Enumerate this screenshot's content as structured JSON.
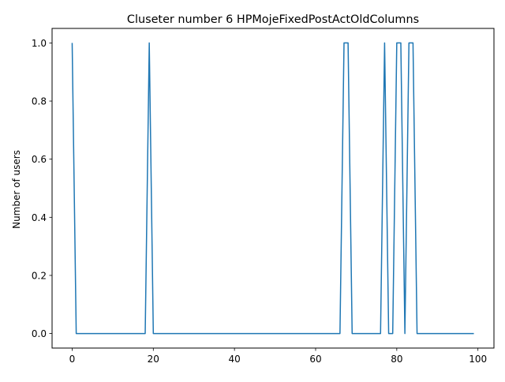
{
  "chart_data": {
    "type": "line",
    "title": "Cluseter number 6 HPMojeFixedPostActOldColumns",
    "xlabel": "",
    "ylabel": "Number of users",
    "xlim": [
      -4.95,
      103.95
    ],
    "ylim": [
      -0.05,
      1.05
    ],
    "xticks": [
      0,
      20,
      40,
      60,
      80,
      100
    ],
    "yticks": [
      0.0,
      0.2,
      0.4,
      0.6,
      0.8,
      1.0
    ],
    "xtick_labels": [
      "0",
      "20",
      "40",
      "60",
      "80",
      "100"
    ],
    "ytick_labels": [
      "0.0",
      "0.2",
      "0.4",
      "0.6",
      "0.8",
      "1.0"
    ],
    "grid": false,
    "line_color": "#1f77b4",
    "series": [
      {
        "x": [
          0,
          1,
          2,
          3,
          4,
          5,
          6,
          7,
          8,
          9,
          10,
          11,
          12,
          13,
          14,
          15,
          16,
          17,
          18,
          19,
          20,
          21,
          22,
          23,
          24,
          25,
          26,
          27,
          28,
          29,
          30,
          31,
          32,
          33,
          34,
          35,
          36,
          37,
          38,
          39,
          40,
          41,
          42,
          43,
          44,
          45,
          46,
          47,
          48,
          49,
          50,
          51,
          52,
          53,
          54,
          55,
          56,
          57,
          58,
          59,
          60,
          61,
          62,
          63,
          64,
          65,
          66,
          67,
          68,
          69,
          70,
          71,
          72,
          73,
          74,
          75,
          76,
          77,
          78,
          79,
          80,
          81,
          82,
          83,
          84,
          85,
          86,
          87,
          88,
          89,
          90,
          91,
          92,
          93,
          94,
          95,
          96,
          97,
          98,
          99
        ],
        "values": [
          1,
          0,
          0,
          0,
          0,
          0,
          0,
          0,
          0,
          0,
          0,
          0,
          0,
          0,
          0,
          0,
          0,
          0,
          0,
          1,
          0,
          0,
          0,
          0,
          0,
          0,
          0,
          0,
          0,
          0,
          0,
          0,
          0,
          0,
          0,
          0,
          0,
          0,
          0,
          0,
          0,
          0,
          0,
          0,
          0,
          0,
          0,
          0,
          0,
          0,
          0,
          0,
          0,
          0,
          0,
          0,
          0,
          0,
          0,
          0,
          0,
          0,
          0,
          0,
          0,
          0,
          0,
          1,
          1,
          0,
          0,
          0,
          0,
          0,
          0,
          0,
          0,
          1,
          0,
          0,
          1,
          1,
          0,
          1,
          1,
          0,
          0,
          0,
          0,
          0,
          0,
          0,
          0,
          0,
          0,
          0,
          0,
          0,
          0,
          0
        ]
      }
    ]
  }
}
